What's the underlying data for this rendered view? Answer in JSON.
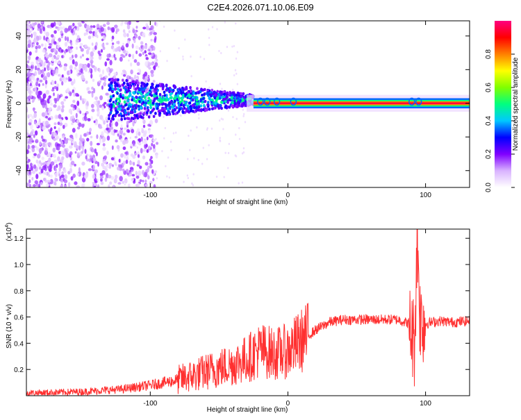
{
  "title": "C2E4.2026.071.10.06.E09",
  "chart_data": [
    {
      "type": "heatmap",
      "name": "spectrogram",
      "xlabel": "Height of straight line (km)",
      "ylabel": "Frequency (Hz)",
      "xlim": [
        -190,
        132
      ],
      "ylim": [
        -50,
        49
      ],
      "xticks": [
        -100,
        0,
        100
      ],
      "yticks": [
        -40,
        -20,
        0,
        20,
        40
      ],
      "colorbar": {
        "label": "Normalized spectral amplitude",
        "range": [
          0,
          1
        ],
        "ticks": [
          0.0,
          0.2,
          0.4,
          0.6,
          0.8
        ],
        "tick_labels": [
          "0.0",
          "0.2",
          "0.4",
          "0.6",
          "0.8"
        ],
        "colors": [
          "#ffffff",
          "#d9b3ff",
          "#8000ff",
          "#0000ff",
          "#00c8ff",
          "#00ff80",
          "#80ff00",
          "#ffff00",
          "#ff8000",
          "#ff0000",
          "#ff0080"
        ]
      },
      "features": [
        {
          "label": "broadband scatter",
          "x_range": [
            -190,
            -115
          ],
          "freq_range": [
            -50,
            49
          ],
          "amplitude": 0.1
        },
        {
          "label": "emerging signal band",
          "x_range": [
            -130,
            -25
          ],
          "freq_range": [
            -8,
            12
          ],
          "amplitude": 0.35
        },
        {
          "label": "peak signal line",
          "x_range": [
            -25,
            132
          ],
          "freq": 0,
          "amplitude": 0.95
        }
      ]
    },
    {
      "type": "line",
      "name": "snr",
      "xlabel": "Height of straight line (km)",
      "ylabel": "SNR (10 * v/v)",
      "scale_label": "(x10",
      "scale_exponent": "4",
      "xlim": [
        -190,
        132
      ],
      "ylim": [
        0,
        1.27
      ],
      "xticks": [
        -100,
        0,
        100
      ],
      "yticks": [
        0.2,
        0.4,
        0.6,
        0.8,
        1.0,
        1.2
      ],
      "ytick_labels": [
        "0.2",
        "0.4",
        "0.6",
        "0.8",
        "1.0",
        "1.2"
      ],
      "color": "#ff3030",
      "series": [
        {
          "name": "SNR",
          "x": [
            -190,
            -150,
            -120,
            -100,
            -80,
            -60,
            -40,
            -30,
            -20,
            -10,
            0,
            5,
            10,
            20,
            30,
            40,
            60,
            80,
            88,
            92,
            94,
            96,
            100,
            110,
            120,
            132
          ],
          "values": [
            0.02,
            0.03,
            0.05,
            0.08,
            0.12,
            0.18,
            0.24,
            0.28,
            0.35,
            0.32,
            0.34,
            0.38,
            0.42,
            0.5,
            0.56,
            0.58,
            0.58,
            0.58,
            0.55,
            0.4,
            1.25,
            0.6,
            0.55,
            0.57,
            0.56,
            0.57
          ]
        }
      ]
    }
  ]
}
